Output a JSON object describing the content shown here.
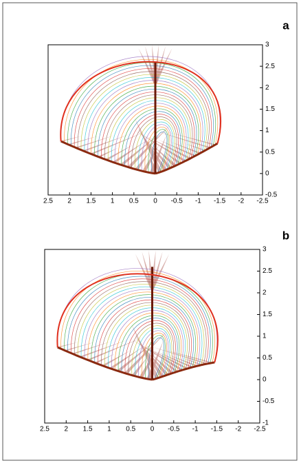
{
  "chart_data": [
    {
      "type": "line",
      "panel_label": "a",
      "xlim": [
        2.5,
        -2.5
      ],
      "xticks": [
        2.5,
        2,
        1.5,
        1,
        0.5,
        0,
        -0.5,
        -1,
        -1.5,
        -2,
        -2.5
      ],
      "ylim": [
        -0.5,
        3
      ],
      "yticks": [
        3,
        2.5,
        2,
        1.5,
        1,
        0.5,
        0,
        -0.5
      ]
    },
    {
      "type": "line",
      "panel_label": "b",
      "xlim": [
        2.5,
        -2.5
      ],
      "xticks": [
        2.5,
        2,
        1.5,
        1,
        0.5,
        0,
        -0.5,
        -1,
        -1.5,
        -2,
        -2.5
      ],
      "ylim": [
        -1,
        3
      ],
      "yticks": [
        3,
        2.5,
        2,
        1.5,
        1,
        0.5,
        0,
        -0.5,
        -1
      ]
    }
  ]
}
